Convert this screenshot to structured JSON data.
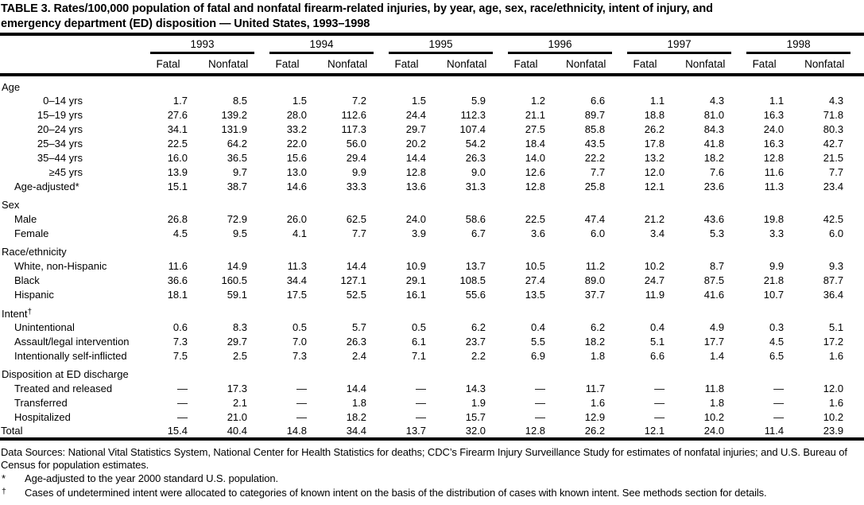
{
  "title_line1": "TABLE 3. Rates/100,000 population of fatal and nonfatal firearm-related injuries, by year, age, sex, race/ethnicity, intent of injury, and",
  "title_line2": "emergency department (ED) disposition — United States, 1993–1998",
  "table": {
    "years": [
      "1993",
      "1994",
      "1995",
      "1996",
      "1997",
      "1998"
    ],
    "subheaders": [
      "Fatal",
      "Nonfatal"
    ],
    "sections": [
      {
        "label": "Age",
        "rows": [
          {
            "label": "0–14 yrs",
            "range": true,
            "values": [
              "1.7",
              "8.5",
              "1.5",
              "7.2",
              "1.5",
              "5.9",
              "1.2",
              "6.6",
              "1.1",
              "4.3",
              "1.1",
              "4.3"
            ]
          },
          {
            "label": "15–19 yrs",
            "range": true,
            "values": [
              "27.6",
              "139.2",
              "28.0",
              "112.6",
              "24.4",
              "112.3",
              "21.1",
              "89.7",
              "18.8",
              "81.0",
              "16.3",
              "71.8"
            ]
          },
          {
            "label": "20–24 yrs",
            "range": true,
            "values": [
              "34.1",
              "131.9",
              "33.2",
              "117.3",
              "29.7",
              "107.4",
              "27.5",
              "85.8",
              "26.2",
              "84.3",
              "24.0",
              "80.3"
            ]
          },
          {
            "label": "25–34 yrs",
            "range": true,
            "values": [
              "22.5",
              "64.2",
              "22.0",
              "56.0",
              "20.2",
              "54.2",
              "18.4",
              "43.5",
              "17.8",
              "41.8",
              "16.3",
              "42.7"
            ]
          },
          {
            "label": "35–44 yrs",
            "range": true,
            "values": [
              "16.0",
              "36.5",
              "15.6",
              "29.4",
              "14.4",
              "26.3",
              "14.0",
              "22.2",
              "13.2",
              "18.2",
              "12.8",
              "21.5"
            ]
          },
          {
            "label": "≥45 yrs",
            "range": true,
            "values": [
              "13.9",
              "9.7",
              "13.0",
              "9.9",
              "12.8",
              "9.0",
              "12.6",
              "7.7",
              "12.0",
              "7.6",
              "11.6",
              "7.7"
            ]
          },
          {
            "label": "Age-adjusted*",
            "range": false,
            "values": [
              "15.1",
              "38.7",
              "14.6",
              "33.3",
              "13.6",
              "31.3",
              "12.8",
              "25.8",
              "12.1",
              "23.6",
              "11.3",
              "23.4"
            ]
          }
        ]
      },
      {
        "label": "Sex",
        "rows": [
          {
            "label": "Male",
            "range": false,
            "values": [
              "26.8",
              "72.9",
              "26.0",
              "62.5",
              "24.0",
              "58.6",
              "22.5",
              "47.4",
              "21.2",
              "43.6",
              "19.8",
              "42.5"
            ]
          },
          {
            "label": "Female",
            "range": false,
            "values": [
              "4.5",
              "9.5",
              "4.1",
              "7.7",
              "3.9",
              "6.7",
              "3.6",
              "6.0",
              "3.4",
              "5.3",
              "3.3",
              "6.0"
            ]
          }
        ]
      },
      {
        "label": "Race/ethnicity",
        "rows": [
          {
            "label": "White, non-Hispanic",
            "range": false,
            "values": [
              "11.6",
              "14.9",
              "11.3",
              "14.4",
              "10.9",
              "13.7",
              "10.5",
              "11.2",
              "10.2",
              "8.7",
              "9.9",
              "9.3"
            ]
          },
          {
            "label": "Black",
            "range": false,
            "values": [
              "36.6",
              "160.5",
              "34.4",
              "127.1",
              "29.1",
              "108.5",
              "27.4",
              "89.0",
              "24.7",
              "87.5",
              "21.8",
              "87.7"
            ]
          },
          {
            "label": "Hispanic",
            "range": false,
            "values": [
              "18.1",
              "59.1",
              "17.5",
              "52.5",
              "16.1",
              "55.6",
              "13.5",
              "37.7",
              "11.9",
              "41.6",
              "10.7",
              "36.4"
            ]
          }
        ]
      },
      {
        "label": "Intent",
        "marker": "†",
        "rows": [
          {
            "label": "Unintentional",
            "range": false,
            "values": [
              "0.6",
              "8.3",
              "0.5",
              "5.7",
              "0.5",
              "6.2",
              "0.4",
              "6.2",
              "0.4",
              "4.9",
              "0.3",
              "5.1"
            ]
          },
          {
            "label": "Assault/legal intervention",
            "range": false,
            "values": [
              "7.3",
              "29.7",
              "7.0",
              "26.3",
              "6.1",
              "23.7",
              "5.5",
              "18.2",
              "5.1",
              "17.7",
              "4.5",
              "17.2"
            ]
          },
          {
            "label": "Intentionally self-inflicted",
            "range": false,
            "values": [
              "7.5",
              "2.5",
              "7.3",
              "2.4",
              "7.1",
              "2.2",
              "6.9",
              "1.8",
              "6.6",
              "1.4",
              "6.5",
              "1.6"
            ]
          }
        ]
      },
      {
        "label": "Disposition at ED discharge",
        "rows": [
          {
            "label": "Treated and released",
            "range": false,
            "values": [
              "—",
              "17.3",
              "—",
              "14.4",
              "—",
              "14.3",
              "—",
              "11.7",
              "—",
              "11.8",
              "—",
              "12.0"
            ]
          },
          {
            "label": "Transferred",
            "range": false,
            "values": [
              "—",
              "2.1",
              "—",
              "1.8",
              "—",
              "1.9",
              "—",
              "1.6",
              "—",
              "1.8",
              "—",
              "1.6"
            ]
          },
          {
            "label": "Hospitalized",
            "range": false,
            "values": [
              "—",
              "21.0",
              "—",
              "18.2",
              "—",
              "15.7",
              "—",
              "12.9",
              "—",
              "10.2",
              "—",
              "10.2"
            ]
          }
        ]
      }
    ],
    "total_row": {
      "label": "Total",
      "values": [
        "15.4",
        "40.4",
        "14.8",
        "34.4",
        "13.7",
        "32.0",
        "12.8",
        "26.2",
        "12.1",
        "24.0",
        "11.4",
        "23.9"
      ]
    }
  },
  "footnotes": {
    "data_sources": "Data Sources: National Vital Statistics System, National Center for Health Statistics for deaths; CDC’s Firearm Injury Surveillance Study for estimates of nonfatal injuries; and U.S. Bureau of Census for population estimates.",
    "asterisk": {
      "marker": "*",
      "text": "Age-adjusted to the year 2000 standard U.S. population."
    },
    "dagger": {
      "marker": "†",
      "text": "Cases of undetermined intent were allocated to categories of known intent on the basis of the distribution of cases with known intent. See methods section for details."
    }
  }
}
